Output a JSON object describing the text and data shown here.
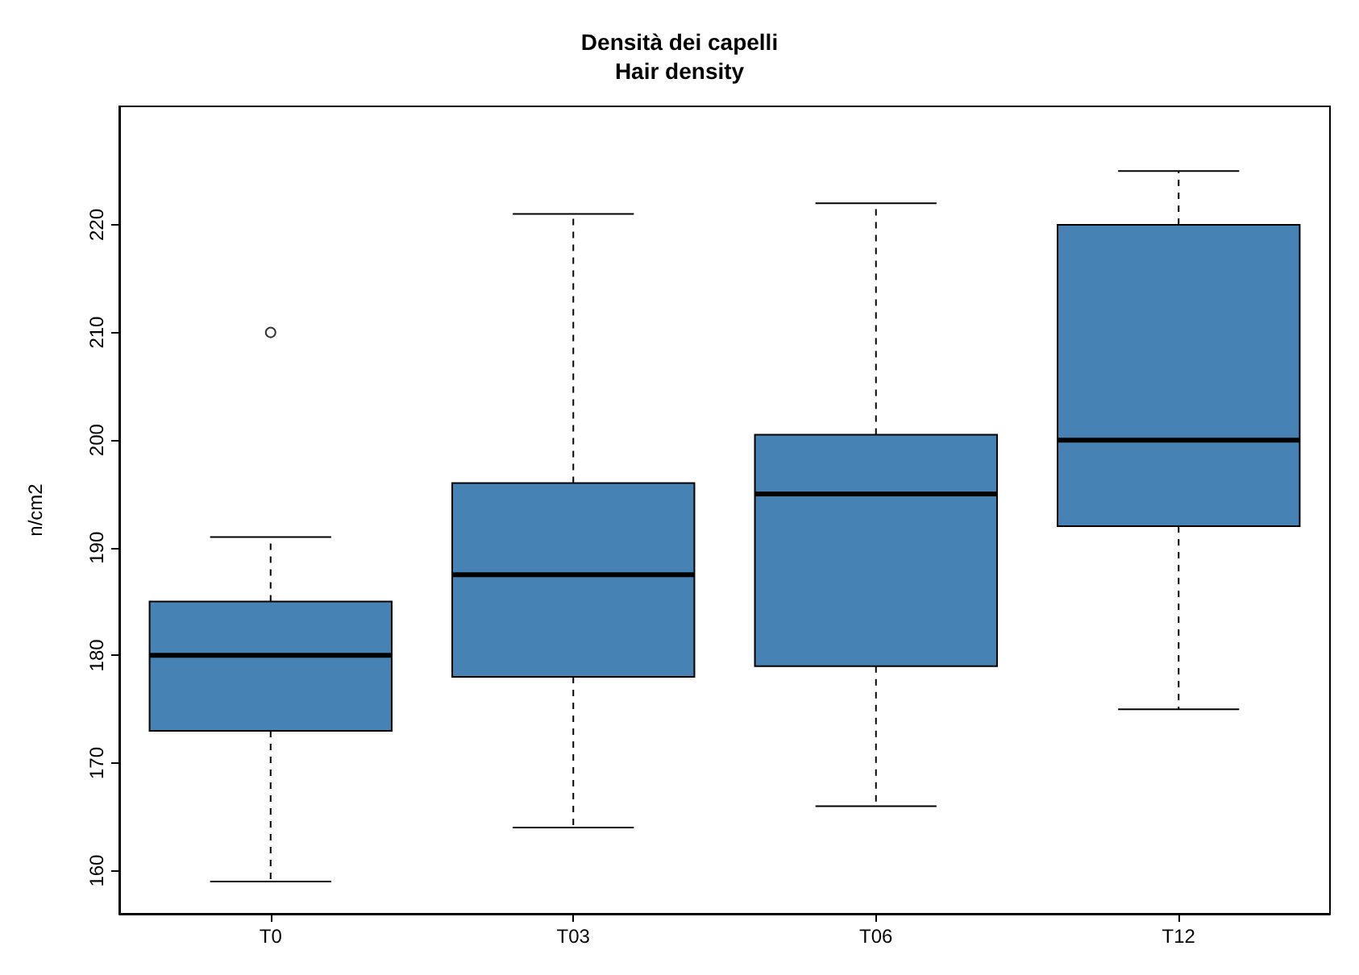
{
  "chart_data": {
    "type": "box",
    "title": "Densità dei capelli",
    "subtitle": "Hair density",
    "ylabel": "n/cm2",
    "categories": [
      "T0",
      "T03",
      "T06",
      "T12"
    ],
    "color": "#4682b4",
    "boxes": [
      {
        "low": 159,
        "q1": 173,
        "median": 180,
        "q3": 185,
        "high": 191,
        "outliers": [
          210
        ]
      },
      {
        "low": 164,
        "q1": 178,
        "median": 187.5,
        "q3": 196,
        "high": 221
      },
      {
        "low": 166,
        "q1": 179,
        "median": 195,
        "q3": 200.5,
        "high": 222
      },
      {
        "low": 175,
        "q1": 192,
        "median": 200,
        "q3": 220,
        "high": 225
      }
    ],
    "ylim": [
      156,
      231
    ],
    "yticks": [
      160,
      170,
      180,
      190,
      200,
      210,
      220
    ],
    "grid": false,
    "line_style": "dashed"
  }
}
